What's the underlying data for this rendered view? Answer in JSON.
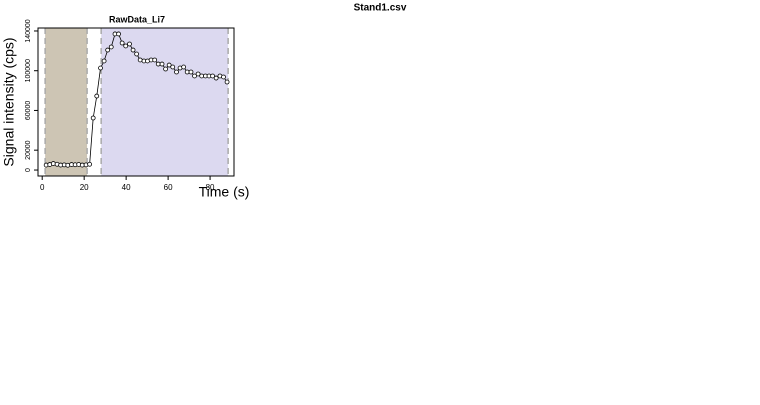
{
  "page_title": "Stand1.csv",
  "chart_data": {
    "type": "line",
    "title": "RawData_Li7",
    "x_label": "Time (s)",
    "y_label": "Signal intensity (cps)",
    "xlim": [
      -2,
      91.4
    ],
    "ylim": [
      -6000,
      143000
    ],
    "xticks": [
      0,
      20,
      40,
      60,
      80
    ],
    "yticks": [
      0,
      20000,
      60000,
      100000,
      140000
    ],
    "regions": [
      {
        "start": 1.4,
        "end": 21.4,
        "color": "#cdc5b4"
      },
      {
        "start": 28.1,
        "end": 88.6,
        "color": "#dcd9f0"
      }
    ],
    "x": [
      1.9,
      3.6,
      5.3,
      7.1,
      8.8,
      10.5,
      12.2,
      14.0,
      15.7,
      17.4,
      19.1,
      20.9,
      22.6,
      24.3,
      26.0,
      27.8,
      29.5,
      31.2,
      32.9,
      34.7,
      36.4,
      38.1,
      39.8,
      41.6,
      43.3,
      45.0,
      46.7,
      48.5,
      50.2,
      51.9,
      53.6,
      55.3,
      57.1,
      58.8,
      60.5,
      62.2,
      64.0,
      65.7,
      67.4,
      69.1,
      70.9,
      72.6,
      74.3,
      76.0,
      77.8,
      79.5,
      81.2,
      82.9,
      84.7,
      86.4,
      88.1
    ],
    "series": [
      {
        "color": "#000000",
        "values": [
          5000,
          5500,
          6500,
          5800,
          5000,
          5200,
          4800,
          5500,
          5300,
          5600,
          5000,
          5200,
          5800,
          52400,
          74500,
          102700,
          109800,
          120800,
          123900,
          137000,
          137000,
          127900,
          124900,
          126900,
          120800,
          116800,
          110800,
          109800,
          109800,
          110800,
          110800,
          106700,
          106700,
          101700,
          105700,
          103700,
          98700,
          102700,
          103700,
          98700,
          98700,
          94700,
          96700,
          94700,
          94700,
          94700,
          94700,
          92600,
          94700,
          93700,
          88600
        ]
      }
    ]
  }
}
